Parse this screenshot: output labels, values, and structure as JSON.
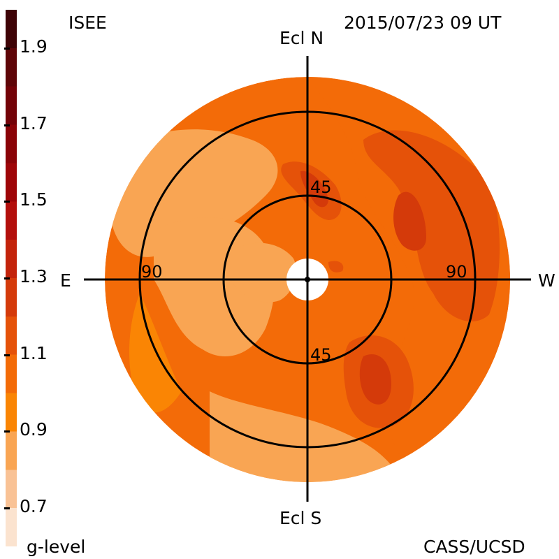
{
  "header": {
    "source": "ISEE",
    "timestamp": "2015/07/23 09 UT"
  },
  "footer": {
    "colorbar_label": "g-level",
    "credit": "CASS/UCSD"
  },
  "colorbar": {
    "min": 0.6,
    "max": 2.0,
    "tick_labels": [
      "1.9",
      "1.7",
      "1.5",
      "1.3",
      "1.1",
      "0.9",
      "0.7"
    ],
    "colors": [
      "#fbe3cf",
      "#f9c295",
      "#f9a553",
      "#fa8504",
      "#f36b08",
      "#e55209",
      "#d43a0a",
      "#c3230b",
      "#b30f0c",
      "#9e0508",
      "#8a0307",
      "#730208",
      "#5e0508",
      "#3e0306"
    ]
  },
  "skymap": {
    "directions": {
      "north": "Ecl N",
      "south": "Ecl S",
      "east": "E",
      "west": "W"
    },
    "elongation_labels": {
      "inner_top": "45",
      "inner_bottom": "45",
      "outer_left": "90",
      "outer_right": "90"
    },
    "background_color": "#f36b08",
    "levels_shown": [
      0.8,
      0.9,
      1.0,
      1.1,
      1.2,
      1.3,
      1.4
    ]
  }
}
